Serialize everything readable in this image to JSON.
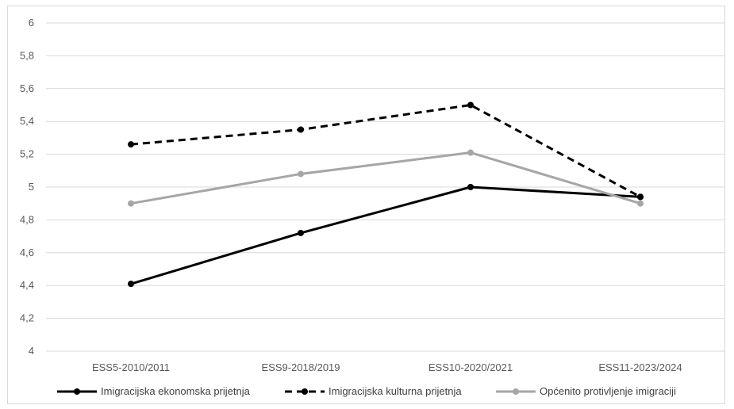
{
  "chart_data": {
    "type": "line",
    "title": "",
    "xlabel": "",
    "ylabel": "",
    "categories": [
      "ESS5-2010/2011",
      "ESS9-2018/2019",
      "ESS10-2020/2021",
      "ESS11-2023/2024"
    ],
    "ylim": [
      4,
      6
    ],
    "yticks": [
      "4",
      "4,2",
      "4,4",
      "4,6",
      "4,8",
      "5",
      "5,2",
      "5,4",
      "5,6",
      "5,8",
      "6"
    ],
    "grid": true,
    "legend_position": "bottom",
    "series": [
      {
        "name": "Imigracijska ekonomska prijetnja",
        "values": [
          4.41,
          4.72,
          5.0,
          4.94
        ],
        "color": "#000000",
        "dash": "solid"
      },
      {
        "name": "Imigracijska kulturna prijetnja",
        "values": [
          5.26,
          5.35,
          5.5,
          4.94
        ],
        "color": "#000000",
        "dash": "dashed"
      },
      {
        "name": "Općenito protivljenje imigraciji",
        "values": [
          4.9,
          5.08,
          5.21,
          4.9
        ],
        "color": "#a6a6a6",
        "dash": "solid"
      }
    ]
  }
}
